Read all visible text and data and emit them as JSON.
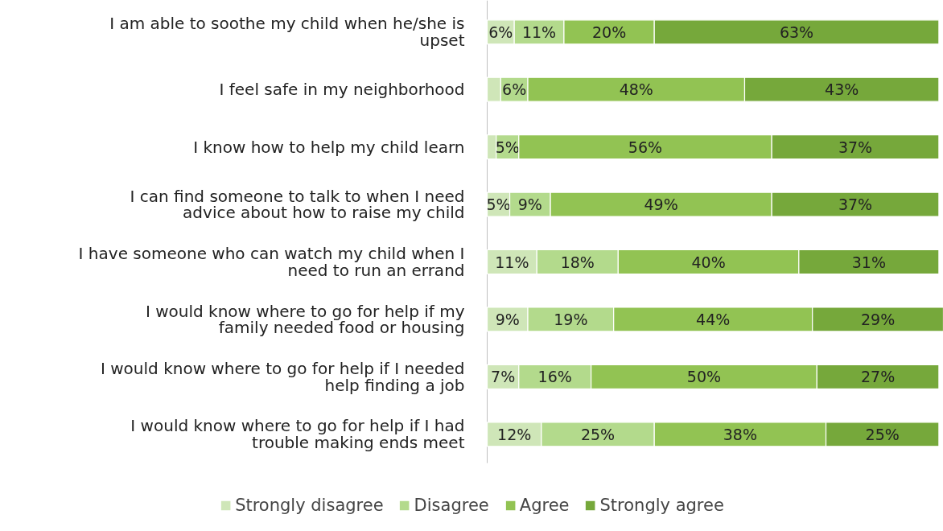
{
  "chart_data": {
    "type": "bar",
    "orientation": "horizontal",
    "stacked": true,
    "categories": [
      "I am able to soothe my child when he/she is upset",
      "I feel safe in my neighborhood",
      "I know how to help my child learn",
      "I can find someone to talk to when I need advice about how to raise my child",
      "I have someone who can watch my child when I need to run an errand",
      "I would know where to go for help if my family needed food or housing",
      "I would know where to go for help if I needed help finding a job",
      "I would know where to go for help if I had trouble making ends meet"
    ],
    "series": [
      {
        "name": "Strongly disagree",
        "color": "#cfe6b8",
        "values": [
          6,
          3,
          2,
          5,
          11,
          9,
          7,
          12
        ],
        "value_labels": [
          "6%",
          null,
          null,
          "5%",
          "11%",
          "9%",
          "7%",
          "12%"
        ]
      },
      {
        "name": "Disagree",
        "color": "#b3da8c",
        "values": [
          11,
          6,
          5,
          9,
          18,
          19,
          16,
          25
        ],
        "value_labels": [
          "11%",
          "6%",
          "5%",
          "9%",
          "18%",
          "19%",
          "16%",
          "25%"
        ]
      },
      {
        "name": "Agree",
        "color": "#92c353",
        "values": [
          20,
          48,
          56,
          49,
          40,
          44,
          50,
          38
        ],
        "value_labels": [
          "20%",
          "48%",
          "56%",
          "49%",
          "40%",
          "44%",
          "50%",
          "38%"
        ]
      },
      {
        "name": "Strongly agree",
        "color": "#76a83b",
        "values": [
          63,
          43,
          37,
          37,
          31,
          29,
          27,
          25
        ],
        "value_labels": [
          "63%",
          "43%",
          "37%",
          "37%",
          "31%",
          "29%",
          "27%",
          "25%"
        ]
      }
    ],
    "xlim": [
      0,
      101
    ],
    "tick_labels": "y",
    "legend": "bottom"
  }
}
